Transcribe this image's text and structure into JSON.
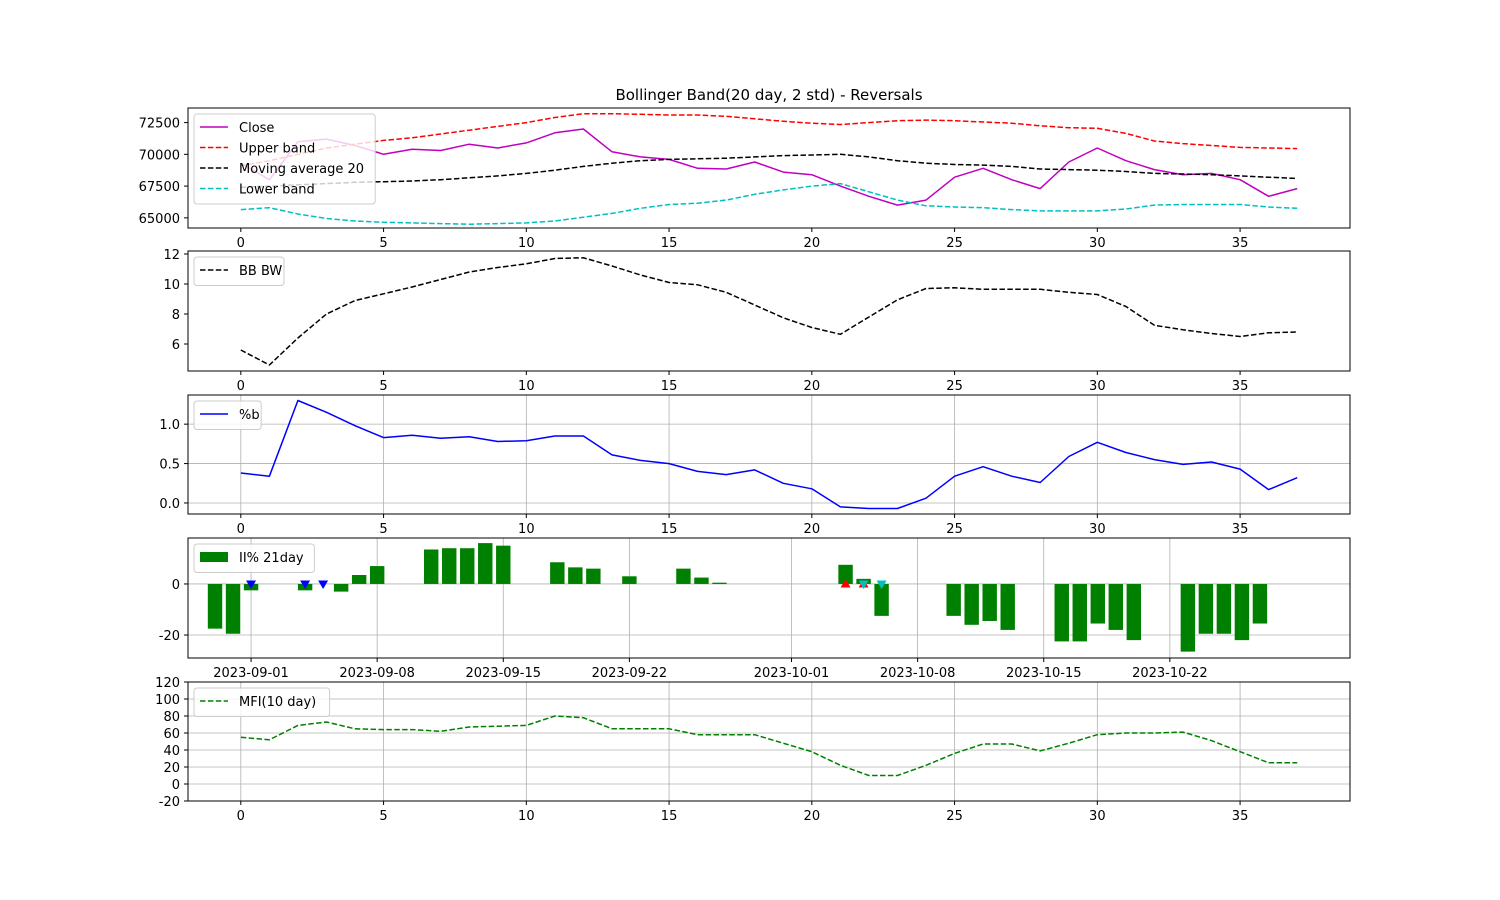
{
  "title": "Bollinger Band(20 day, 2 std) - Reversals",
  "chart_data": [
    {
      "id": "price",
      "type": "line",
      "xlim": [
        -1.85,
        38.85
      ],
      "ylim": [
        64200,
        73650
      ],
      "xticks": [
        0,
        5,
        10,
        15,
        20,
        25,
        30,
        35
      ],
      "yticks": [
        65000,
        67500,
        70000,
        72500
      ],
      "grid": false,
      "legend_position": "top-left",
      "series": [
        {
          "name": "Close",
          "color": "#c000c0",
          "dash": "solid",
          "values": [
            69300,
            68000,
            71000,
            71200,
            70700,
            70000,
            70400,
            70300,
            70800,
            70500,
            70900,
            71700,
            72000,
            70200,
            69800,
            69600,
            68900,
            68850,
            69400,
            68600,
            68400,
            67500,
            66700,
            66000,
            66400,
            68200,
            68900,
            68000,
            67300,
            69400,
            70500,
            69500,
            68800,
            68400,
            68500,
            68000,
            66700,
            67300
          ]
        },
        {
          "name": "Upper band",
          "color": "#ff0000",
          "dash": "dashed",
          "values": [
            69100,
            69500,
            70000,
            70500,
            70800,
            71100,
            71300,
            71600,
            71900,
            72200,
            72500,
            72900,
            73200,
            73200,
            73150,
            73100,
            73100,
            73000,
            72800,
            72600,
            72450,
            72350,
            72500,
            72650,
            72700,
            72650,
            72550,
            72450,
            72250,
            72100,
            72050,
            71650,
            71050,
            70850,
            70700,
            70550,
            70500,
            70450
          ]
        },
        {
          "name": "Moving average 20",
          "color": "#000000",
          "dash": "dashed",
          "values": [
            67400,
            67500,
            67600,
            67700,
            67800,
            67850,
            67900,
            68000,
            68150,
            68300,
            68500,
            68750,
            69050,
            69300,
            69500,
            69600,
            69650,
            69700,
            69800,
            69900,
            69950,
            70000,
            69800,
            69500,
            69300,
            69200,
            69150,
            69050,
            68850,
            68800,
            68750,
            68650,
            68500,
            68450,
            68400,
            68300,
            68200,
            68100
          ]
        },
        {
          "name": "Lower band",
          "color": "#00c0c0",
          "dash": "dashed",
          "values": [
            65650,
            65800,
            65300,
            64950,
            64750,
            64650,
            64600,
            64550,
            64500,
            64550,
            64600,
            64750,
            65050,
            65350,
            65750,
            66050,
            66150,
            66400,
            66850,
            67200,
            67500,
            67700,
            67050,
            66400,
            65950,
            65850,
            65800,
            65650,
            65550,
            65550,
            65550,
            65700,
            66000,
            66050,
            66050,
            66050,
            65850,
            65750
          ]
        }
      ]
    },
    {
      "id": "bbw",
      "type": "line",
      "xlim": [
        -1.85,
        38.85
      ],
      "ylim": [
        4.2,
        12.2
      ],
      "xticks": [
        0,
        5,
        10,
        15,
        20,
        25,
        30,
        35
      ],
      "yticks": [
        6,
        8,
        10,
        12
      ],
      "grid": false,
      "legend_position": "top-left",
      "series": [
        {
          "name": "BB BW",
          "color": "#000000",
          "dash": "dashed",
          "values": [
            5.6,
            4.6,
            6.4,
            8.0,
            8.9,
            9.35,
            9.8,
            10.3,
            10.8,
            11.1,
            11.35,
            11.7,
            11.75,
            11.2,
            10.6,
            10.1,
            9.95,
            9.45,
            8.6,
            7.75,
            7.1,
            6.65,
            7.8,
            8.95,
            9.7,
            9.75,
            9.65,
            9.65,
            9.65,
            9.45,
            9.3,
            8.5,
            7.25,
            6.95,
            6.7,
            6.5,
            6.75,
            6.8
          ]
        }
      ]
    },
    {
      "id": "pctb",
      "type": "line",
      "xlim": [
        -1.85,
        38.85
      ],
      "ylim": [
        -0.14,
        1.37
      ],
      "xticks": [
        0,
        5,
        10,
        15,
        20,
        25,
        30,
        35
      ],
      "yticks": [
        0.0,
        0.5,
        1.0
      ],
      "ytick_labels": [
        "0.0",
        "0.5",
        "1.0"
      ],
      "grid": true,
      "legend_position": "top-left",
      "series": [
        {
          "name": "%b",
          "color": "#0000ff",
          "dash": "solid",
          "values": [
            0.38,
            0.34,
            1.3,
            1.15,
            0.98,
            0.83,
            0.86,
            0.82,
            0.84,
            0.78,
            0.79,
            0.85,
            0.85,
            0.61,
            0.54,
            0.5,
            0.4,
            0.36,
            0.42,
            0.25,
            0.18,
            -0.05,
            -0.07,
            -0.07,
            0.06,
            0.34,
            0.46,
            0.34,
            0.26,
            0.59,
            0.77,
            0.64,
            0.55,
            0.49,
            0.52,
            0.43,
            0.17,
            0.32
          ]
        }
      ]
    },
    {
      "id": "ii",
      "type": "bar",
      "xlim_days": [
        -3.5,
        61.0
      ],
      "ylim": [
        -29,
        18
      ],
      "yticks": [
        -20,
        0
      ],
      "xtick_days": [
        0,
        7,
        14,
        21,
        30,
        37,
        44,
        51
      ],
      "xtick_labels": [
        "2023-09-01",
        "2023-09-08",
        "2023-09-15",
        "2023-09-22",
        "2023-10-01",
        "2023-10-08",
        "2023-10-15",
        "2023-10-22"
      ],
      "grid": true,
      "legend_position": "top-left",
      "series": [
        {
          "name": "II% 21day",
          "color": "#008000",
          "points": [
            {
              "day": -2,
              "value": -17.5
            },
            {
              "day": -1,
              "value": -19.5
            },
            {
              "day": 0,
              "value": -2.5
            },
            {
              "day": 3,
              "value": -2.5
            },
            {
              "day": 5,
              "value": -3.0
            },
            {
              "day": 6,
              "value": 3.5
            },
            {
              "day": 7,
              "value": 7.0
            },
            {
              "day": 10,
              "value": 13.5
            },
            {
              "day": 11,
              "value": 14.0
            },
            {
              "day": 12,
              "value": 14.0
            },
            {
              "day": 13,
              "value": 16.0
            },
            {
              "day": 14,
              "value": 15.0
            },
            {
              "day": 17,
              "value": 8.5
            },
            {
              "day": 18,
              "value": 6.5
            },
            {
              "day": 19,
              "value": 6.0
            },
            {
              "day": 21,
              "value": 3.0
            },
            {
              "day": 24,
              "value": 6.0
            },
            {
              "day": 25,
              "value": 2.5
            },
            {
              "day": 26,
              "value": 0.5
            },
            {
              "day": 33,
              "value": 7.5
            },
            {
              "day": 34,
              "value": 2.0
            },
            {
              "day": 35,
              "value": -12.5
            },
            {
              "day": 39,
              "value": -12.5
            },
            {
              "day": 40,
              "value": -16.0
            },
            {
              "day": 41,
              "value": -14.5
            },
            {
              "day": 42,
              "value": -18.0
            },
            {
              "day": 45,
              "value": -22.5
            },
            {
              "day": 46,
              "value": -22.5
            },
            {
              "day": 47,
              "value": -15.5
            },
            {
              "day": 48,
              "value": -18.0
            },
            {
              "day": 49,
              "value": -22.0
            },
            {
              "day": 52,
              "value": -26.5
            },
            {
              "day": 53,
              "value": -19.5
            },
            {
              "day": 54,
              "value": -19.5
            },
            {
              "day": 55,
              "value": -22.0
            },
            {
              "day": 56,
              "value": -15.5
            }
          ]
        }
      ],
      "markers": [
        {
          "day": 0,
          "value": 0,
          "shape": "triangle-down",
          "color": "#0000ff"
        },
        {
          "day": 3,
          "value": 0,
          "shape": "triangle-down",
          "color": "#0000ff"
        },
        {
          "day": 4,
          "value": 0,
          "shape": "triangle-down",
          "color": "#0000ff"
        },
        {
          "day": 33,
          "value": 0,
          "shape": "triangle-up",
          "color": "#ff0000"
        },
        {
          "day": 34,
          "value": 0,
          "shape": "triangle-up",
          "color": "#ff0000"
        },
        {
          "day": 34,
          "value": 0,
          "shape": "triangle-down",
          "color": "#00c0c0"
        },
        {
          "day": 35,
          "value": 0,
          "shape": "triangle-down",
          "color": "#00c0c0"
        }
      ]
    },
    {
      "id": "mfi",
      "type": "line",
      "xlim": [
        -1.85,
        38.85
      ],
      "ylim": [
        -20,
        120
      ],
      "xticks": [
        0,
        5,
        10,
        15,
        20,
        25,
        30,
        35
      ],
      "yticks": [
        -20,
        0,
        20,
        40,
        60,
        80,
        100,
        120
      ],
      "grid": true,
      "legend_position": "top-left",
      "series": [
        {
          "name": "MFI(10 day)",
          "color": "#008000",
          "dash": "dashed",
          "values": [
            55,
            52,
            69,
            73,
            65,
            64,
            64,
            62,
            67,
            68,
            69,
            80,
            78,
            65,
            65,
            65,
            58,
            58,
            58,
            48,
            38,
            22,
            10,
            10,
            22,
            36,
            47,
            47,
            39,
            48,
            58,
            60,
            60,
            61,
            51,
            38,
            25,
            25
          ]
        }
      ]
    }
  ]
}
